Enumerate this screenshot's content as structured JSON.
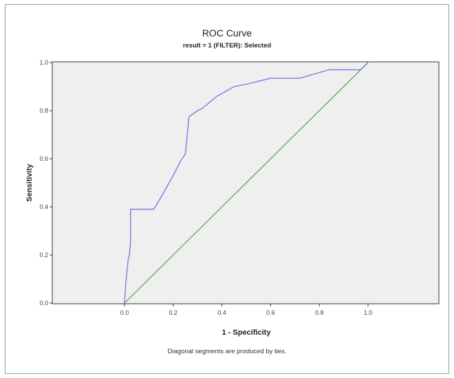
{
  "chart_data": {
    "type": "line",
    "title": "ROC Curve",
    "subtitle": "result = 1 (FILTER): Selected",
    "xlabel": "1 - Specificity",
    "ylabel": "Sensitivity",
    "footnote": "Diagonal segments are produced by ties.",
    "xlim": [
      0,
      1
    ],
    "ylim": [
      0,
      1
    ],
    "x_ticks": [
      "0.0",
      "0.2",
      "0.4",
      "0.6",
      "0.8",
      "1.0"
    ],
    "y_ticks": [
      "0.0",
      "0.2",
      "0.4",
      "0.6",
      "0.8",
      "1.0"
    ],
    "grid": false,
    "legend": "none",
    "series": [
      {
        "color": "#7b7be0",
        "x": [
          0.0,
          0.005,
          0.01,
          0.015,
          0.02,
          0.025,
          0.025,
          0.12,
          0.15,
          0.2,
          0.23,
          0.25,
          0.265,
          0.3,
          0.32,
          0.38,
          0.45,
          0.5,
          0.6,
          0.72,
          0.84,
          0.97,
          1.0
        ],
        "y": [
          0.0,
          0.08,
          0.13,
          0.18,
          0.2,
          0.25,
          0.39,
          0.39,
          0.44,
          0.53,
          0.59,
          0.62,
          0.775,
          0.8,
          0.81,
          0.86,
          0.9,
          0.91,
          0.935,
          0.935,
          0.97,
          0.97,
          1.0
        ]
      },
      {
        "color": "#5fae5f",
        "x": [
          0,
          1
        ],
        "y": [
          0,
          1
        ]
      }
    ],
    "plot_background": "#efefef",
    "axis_color": "#333333"
  }
}
